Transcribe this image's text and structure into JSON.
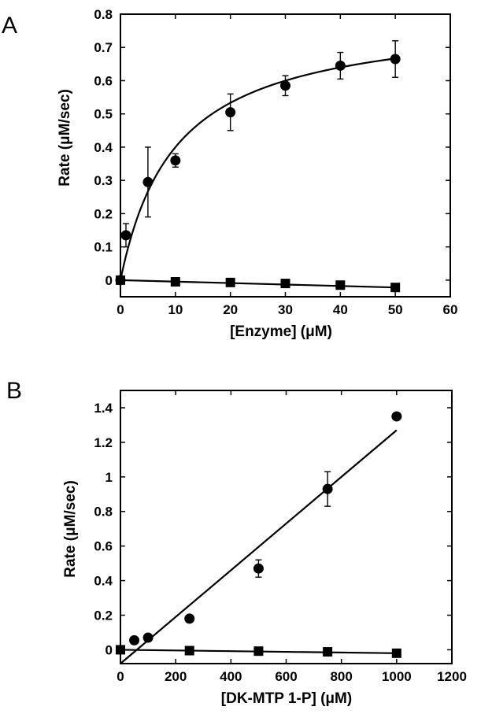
{
  "chart_data": [
    {
      "type": "scatter",
      "panel_label": "A",
      "xlabel": "[Enzyme] (μM)",
      "ylabel": "Rate (μM/sec)",
      "xlim": [
        0,
        60
      ],
      "ylim": [
        -0.05,
        0.8
      ],
      "xticks": [
        0,
        10,
        20,
        30,
        40,
        50,
        60
      ],
      "yticks": [
        0,
        0.1,
        0.2,
        0.3,
        0.4,
        0.5,
        0.6,
        0.7,
        0.8
      ],
      "xtick_labels": [
        "0",
        "10",
        "20",
        "30",
        "40",
        "50",
        "60"
      ],
      "ytick_labels": [
        "0",
        "0.1",
        "0.2",
        "0.3",
        "0.4",
        "0.5",
        "0.6",
        "0.7",
        "0.8"
      ],
      "grid": false,
      "legend": "none",
      "series": [
        {
          "marker": "circle",
          "points": [
            {
              "x": 0,
              "y": 0.0,
              "err": 0
            },
            {
              "x": 1,
              "y": 0.135,
              "err": 0.035
            },
            {
              "x": 5,
              "y": 0.295,
              "err": 0.105
            },
            {
              "x": 10,
              "y": 0.36,
              "err": 0.02
            },
            {
              "x": 20,
              "y": 0.505,
              "err": 0.055
            },
            {
              "x": 30,
              "y": 0.585,
              "err": 0.03
            },
            {
              "x": 40,
              "y": 0.645,
              "err": 0.04
            },
            {
              "x": 50,
              "y": 0.665,
              "err": 0.055
            }
          ],
          "fit": {
            "model": "hyperbolic",
            "vmax": 0.8,
            "k": 10
          }
        },
        {
          "marker": "square",
          "points": [
            {
              "x": 0,
              "y": 0.0
            },
            {
              "x": 10,
              "y": -0.005
            },
            {
              "x": 20,
              "y": -0.007
            },
            {
              "x": 30,
              "y": -0.01
            },
            {
              "x": 40,
              "y": -0.015
            },
            {
              "x": 50,
              "y": -0.022
            }
          ],
          "fit": {
            "model": "linear",
            "slope": -0.00044,
            "intercept": 0.0
          }
        }
      ]
    },
    {
      "type": "scatter",
      "panel_label": "B",
      "xlabel": "[DK-MTP 1-P] (μM)",
      "ylabel": "Rate (μM/sec)",
      "xlim": [
        0,
        1200
      ],
      "ylim": [
        -0.08,
        1.5
      ],
      "xticks": [
        0,
        200,
        400,
        600,
        800,
        1000,
        1200
      ],
      "yticks": [
        0,
        0.2,
        0.4,
        0.6,
        0.8,
        1,
        1.2,
        1.4
      ],
      "xtick_labels": [
        "0",
        "200",
        "400",
        "600",
        "800",
        "1000",
        "1200"
      ],
      "ytick_labels": [
        "0",
        "0.2",
        "0.4",
        "0.6",
        "0.8",
        "1",
        "1.2",
        "1.4"
      ],
      "grid": false,
      "legend": "none",
      "series": [
        {
          "marker": "circle",
          "points": [
            {
              "x": 50,
              "y": 0.055,
              "err": 0
            },
            {
              "x": 100,
              "y": 0.07,
              "err": 0
            },
            {
              "x": 250,
              "y": 0.18,
              "err": 0
            },
            {
              "x": 500,
              "y": 0.47,
              "err": 0.05
            },
            {
              "x": 750,
              "y": 0.93,
              "err": 0.1
            },
            {
              "x": 1000,
              "y": 1.35,
              "err": 0
            }
          ],
          "fit": {
            "model": "linear",
            "x_range": [
              0,
              1000
            ],
            "y_range": [
              -0.08,
              1.27
            ]
          }
        },
        {
          "marker": "square",
          "points": [
            {
              "x": 0,
              "y": 0.0
            },
            {
              "x": 250,
              "y": -0.005
            },
            {
              "x": 500,
              "y": -0.008
            },
            {
              "x": 750,
              "y": -0.012
            },
            {
              "x": 1000,
              "y": -0.02
            }
          ],
          "fit": {
            "model": "linear",
            "x_range": [
              0,
              1000
            ],
            "y_range": [
              0.0,
              -0.02
            ]
          }
        }
      ]
    }
  ]
}
